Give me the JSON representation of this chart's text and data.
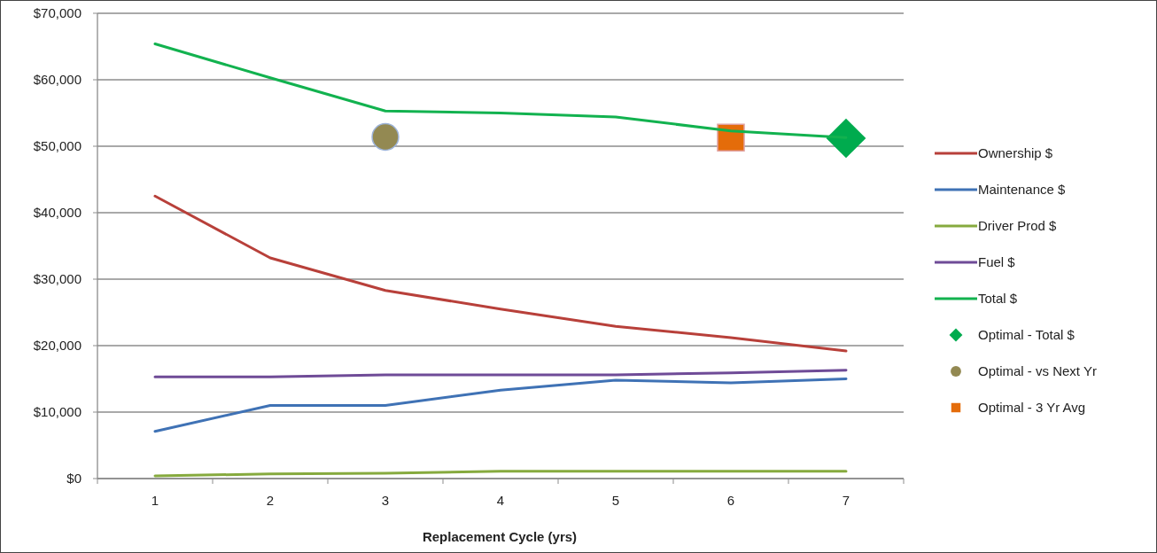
{
  "chart_data": {
    "type": "line",
    "xlabel": "Replacement Cycle (yrs)",
    "categories": [
      "1",
      "2",
      "3",
      "4",
      "5",
      "6",
      "7"
    ],
    "ylim": [
      0,
      70000
    ],
    "yticks": [
      {
        "value": 0,
        "label": "$0"
      },
      {
        "value": 10000,
        "label": "$10,000"
      },
      {
        "value": 20000,
        "label": "$20,000"
      },
      {
        "value": 30000,
        "label": "$30,000"
      },
      {
        "value": 40000,
        "label": "$40,000"
      },
      {
        "value": 50000,
        "label": "$50,000"
      },
      {
        "value": 60000,
        "label": "$60,000"
      },
      {
        "value": 70000,
        "label": "$70,000"
      }
    ],
    "grid": "y",
    "legend": "right",
    "line_style": "solid",
    "series": [
      {
        "name": "Ownership $",
        "color": "#b8403a",
        "values": [
          42500,
          33200,
          28300,
          25500,
          22900,
          21200,
          19200
        ]
      },
      {
        "name": "Maintenance $",
        "color": "#3f72b5",
        "values": [
          7100,
          11000,
          11000,
          13300,
          14800,
          14400,
          15000
        ]
      },
      {
        "name": "Driver Prod $",
        "color": "#86aa3e",
        "values": [
          400,
          700,
          800,
          1100,
          1100,
          1100,
          1100
        ]
      },
      {
        "name": "Fuel $",
        "color": "#6f4b97",
        "values": [
          15300,
          15300,
          15600,
          15600,
          15600,
          15900,
          16300
        ]
      },
      {
        "name": "Total $",
        "color": "#12b24f",
        "values": [
          65400,
          60300,
          55300,
          55000,
          54400,
          52300,
          51300
        ]
      },
      {
        "name": "Optimal - Total $",
        "type": "scatter",
        "marker": "diamond",
        "color": "#00ab4e",
        "values": [
          null,
          null,
          null,
          null,
          null,
          null,
          51200
        ]
      },
      {
        "name": "Optimal - vs Next Yr",
        "type": "scatter",
        "marker": "circle",
        "color": "#938952",
        "values": [
          null,
          null,
          51400,
          null,
          null,
          null,
          null
        ]
      },
      {
        "name": "Optimal - 3 Yr Avg",
        "type": "scatter",
        "marker": "square",
        "color": "#e46c0a",
        "values": [
          null,
          null,
          null,
          null,
          null,
          51300,
          null
        ]
      }
    ]
  }
}
